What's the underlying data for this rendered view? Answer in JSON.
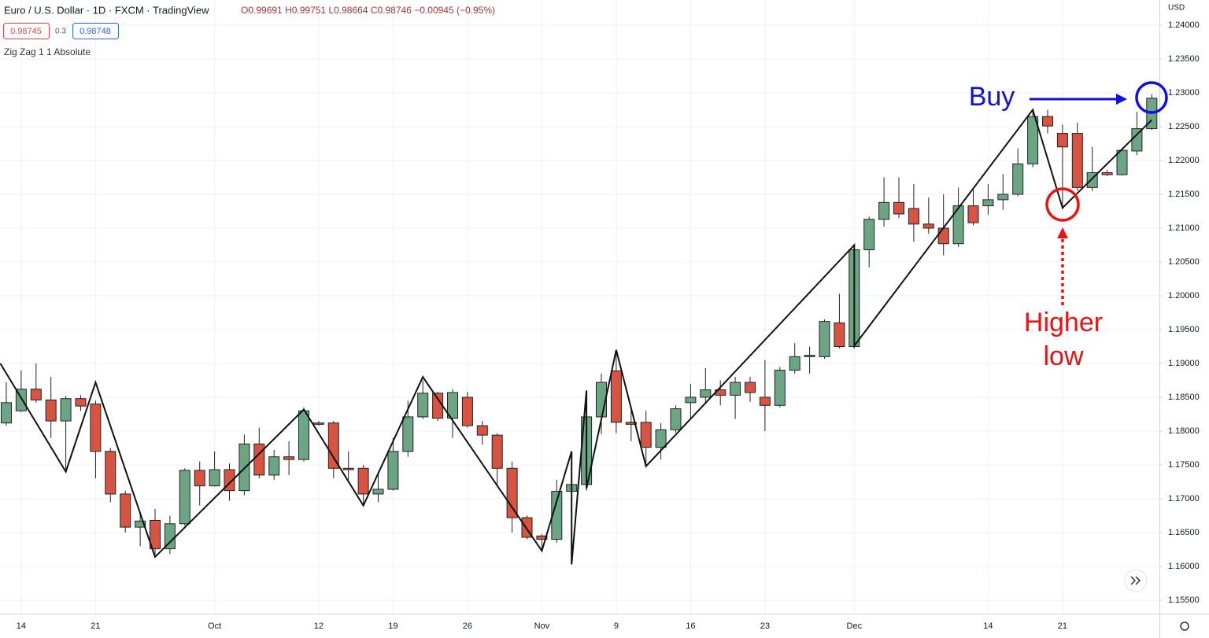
{
  "header": {
    "title": "Euro / U.S. Dollar · 1D · FXCM · TradingView",
    "ohlc": [
      "O0.99691",
      "H0.99751",
      "L0.98664",
      "C0.98746",
      "−0.00945 (−0.95%)"
    ],
    "bid": "0.98745",
    "spread": "0.3",
    "ask": "0.98748",
    "indicator": "Zig Zag 1 1 Absolute",
    "currency": "USD"
  },
  "chart_data": {
    "type": "candlestick",
    "categories": [
      null,
      "14",
      null,
      null,
      null,
      null,
      "21",
      null,
      null,
      null,
      null,
      null,
      null,
      null,
      "Oct",
      null,
      null,
      null,
      null,
      null,
      null,
      "12",
      null,
      null,
      null,
      null,
      "19",
      null,
      null,
      null,
      null,
      "26",
      null,
      null,
      null,
      null,
      "Nov",
      null,
      null,
      null,
      null,
      "9",
      null,
      null,
      null,
      null,
      "16",
      null,
      null,
      null,
      null,
      "23",
      null,
      null,
      null,
      null,
      null,
      "Dec",
      null,
      null,
      null,
      null,
      null,
      null,
      null,
      null,
      "14",
      null,
      null,
      null,
      null,
      "21",
      null,
      null,
      null,
      null,
      null,
      null
    ],
    "open": [
      1.1812,
      1.183,
      1.1862,
      1.1846,
      1.1815,
      1.1848,
      1.184,
      1.177,
      1.1707,
      1.1658,
      1.1668,
      1.1626,
      1.1663,
      1.1742,
      1.1719,
      1.1743,
      1.1712,
      1.1781,
      1.1735,
      1.1762,
      1.1758,
      1.1812,
      1.1812,
      1.1745,
      1.1745,
      1.1707,
      1.1714,
      1.177,
      1.1821,
      1.1856,
      1.1819,
      1.185,
      1.1808,
      1.1794,
      1.1745,
      1.1672,
      1.1645,
      1.164,
      1.1711,
      1.1721,
      1.1821,
      1.1889,
      1.1813,
      1.1813,
      1.1776,
      1.1802,
      1.1842,
      1.185,
      1.1861,
      1.1853,
      1.1872,
      1.185,
      1.1838,
      1.189,
      1.191,
      1.191,
      1.196,
      1.1925,
      1.2068,
      1.2113,
      1.2138,
      1.2129,
      1.2106,
      1.21,
      1.2077,
      1.2133,
      1.2133,
      1.2142,
      1.215,
      1.2195,
      1.2265,
      1.224,
      1.224,
      1.216,
      1.2182,
      1.2179,
      1.2214,
      1.2247
    ],
    "high": [
      1.1872,
      1.189,
      1.19,
      1.188,
      1.1852,
      1.1853,
      1.1845,
      1.1775,
      1.1712,
      1.168,
      1.1685,
      1.1675,
      1.1745,
      1.1755,
      1.177,
      1.1752,
      1.1795,
      1.1805,
      1.1772,
      1.1785,
      1.1835,
      1.1815,
      1.1815,
      1.177,
      1.175,
      1.174,
      1.179,
      1.1845,
      1.1875,
      1.1858,
      1.1862,
      1.1858,
      1.1815,
      1.1797,
      1.1755,
      1.1675,
      1.1648,
      1.1728,
      1.176,
      1.186,
      1.1885,
      1.192,
      1.1835,
      1.183,
      1.1812,
      1.1838,
      1.187,
      1.1893,
      1.1875,
      1.188,
      1.188,
      1.1905,
      1.1895,
      1.193,
      1.1925,
      1.1965,
      1.2003,
      1.2075,
      1.2117,
      1.2175,
      1.2175,
      1.2165,
      1.2145,
      1.215,
      1.216,
      1.2158,
      1.2165,
      1.218,
      1.2218,
      1.2275,
      1.2275,
      1.2253,
      1.2256,
      1.222,
      1.2186,
      1.2218,
      1.2272,
      1.2298
    ],
    "low": [
      1.1808,
      1.1828,
      1.1842,
      1.179,
      1.174,
      1.183,
      1.173,
      1.1695,
      1.165,
      1.163,
      1.1615,
      1.1618,
      1.166,
      1.169,
      1.1718,
      1.1697,
      1.1705,
      1.173,
      1.1728,
      1.1735,
      1.1755,
      1.1808,
      1.173,
      1.1728,
      1.169,
      1.1695,
      1.1712,
      1.1762,
      1.1818,
      1.1815,
      1.179,
      1.1805,
      1.178,
      1.172,
      1.165,
      1.164,
      1.1625,
      1.1635,
      1.1605,
      1.1712,
      1.1795,
      1.1797,
      1.1785,
      1.1748,
      1.1758,
      1.1798,
      1.1818,
      1.184,
      1.1838,
      1.1818,
      1.1843,
      1.18,
      1.1835,
      1.1885,
      1.1885,
      1.1907,
      1.1922,
      1.1922,
      1.2042,
      1.2102,
      1.2115,
      1.208,
      1.2092,
      1.206,
      1.2072,
      1.2104,
      1.212,
      1.2127,
      1.2147,
      1.219,
      1.224,
      1.2128,
      1.2155,
      1.2155,
      1.2177,
      1.2178,
      1.2208,
      1.2245
    ],
    "close": [
      1.1842,
      1.1862,
      1.1846,
      1.1815,
      1.1848,
      1.1837,
      1.177,
      1.1707,
      1.1658,
      1.1667,
      1.1626,
      1.1663,
      1.1742,
      1.1719,
      1.1743,
      1.1712,
      1.1781,
      1.1735,
      1.1762,
      1.1758,
      1.183,
      1.181,
      1.1745,
      1.1743,
      1.1707,
      1.1714,
      1.177,
      1.1821,
      1.1856,
      1.1819,
      1.1857,
      1.1808,
      1.1794,
      1.1745,
      1.1672,
      1.1643,
      1.164,
      1.1711,
      1.1721,
      1.1821,
      1.1872,
      1.1813,
      1.181,
      1.1776,
      1.1802,
      1.1833,
      1.185,
      1.1861,
      1.1853,
      1.1872,
      1.1857,
      1.1838,
      1.189,
      1.191,
      1.1912,
      1.1962,
      1.1925,
      1.2068,
      1.2113,
      1.2138,
      1.2121,
      1.2106,
      1.21,
      1.2077,
      1.2133,
      1.2108,
      1.2142,
      1.215,
      1.2195,
      1.2265,
      1.2251,
      1.222,
      1.216,
      1.2182,
      1.2179,
      1.2215,
      1.2247,
      1.2292
    ],
    "up_color": "#6ba583",
    "down_color": "#d75442",
    "zigzag": {
      "color": "#111111",
      "x": [
        -0.4,
        4,
        6,
        10,
        20,
        24,
        28,
        36,
        38,
        38,
        39,
        39,
        41,
        43,
        57,
        57,
        69,
        71,
        77
      ],
      "values": [
        1.19,
        1.174,
        1.1872,
        1.1614,
        1.1832,
        1.169,
        1.188,
        1.1623,
        1.177,
        1.1603,
        1.186,
        1.1715,
        1.192,
        1.1748,
        1.2075,
        1.1926,
        1.2275,
        1.213,
        1.226
      ]
    },
    "ylim": [
      1.15302,
      1.24372
    ],
    "yticks": [
      {
        "value": 1.155,
        "label": "1.15500"
      },
      {
        "value": 1.16,
        "label": "1.16000"
      },
      {
        "value": 1.165,
        "label": "1.16500"
      },
      {
        "value": 1.17,
        "label": "1.17000"
      },
      {
        "value": 1.175,
        "label": "1.17500"
      },
      {
        "value": 1.18,
        "label": "1.18000"
      },
      {
        "value": 1.185,
        "label": "1.18500"
      },
      {
        "value": 1.19,
        "label": "1.19000"
      },
      {
        "value": 1.195,
        "label": "1.19500"
      },
      {
        "value": 1.2,
        "label": "1.20000"
      },
      {
        "value": 1.205,
        "label": "1.20500"
      },
      {
        "value": 1.21,
        "label": "1.21000"
      },
      {
        "value": 1.215,
        "label": "1.21500"
      },
      {
        "value": 1.22,
        "label": "1.22000"
      },
      {
        "value": 1.225,
        "label": "1.22500"
      },
      {
        "value": 1.23,
        "label": "1.23000"
      },
      {
        "value": 1.235,
        "label": "1.23500"
      },
      {
        "value": 1.24,
        "label": "1.24000"
      }
    ],
    "grid": true,
    "annotations": [
      {
        "lines": [
          "Buy"
        ],
        "color": "#1010e0"
      },
      {
        "lines": [
          "Higher",
          "low"
        ],
        "color": "#ee1111"
      }
    ]
  }
}
